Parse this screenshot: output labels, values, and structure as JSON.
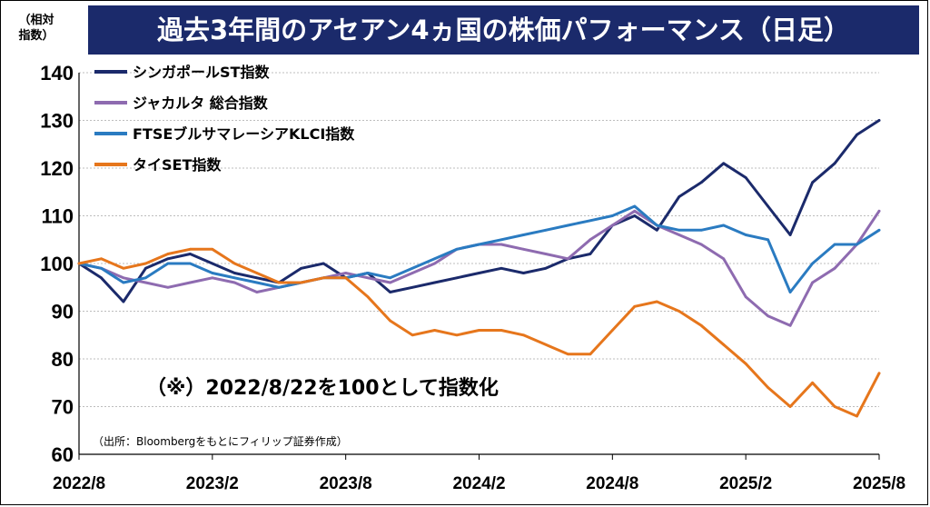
{
  "title": "過去3年間のアセアン4ヵ国の株価パフォーマンス（日足）",
  "unit_label_line1": "（相対",
  "unit_label_line2": "指数）",
  "note": "（※）2022/8/22を100として指数化",
  "source": "（出所：Bloombergをもとにフィリップ証券作成）",
  "chart_data": {
    "type": "line",
    "title": "過去3年間のアセアン4ヵ国の株価パフォーマンス（日足）",
    "ylabel": "（相対指数）",
    "ylim": [
      60,
      140
    ],
    "yticks": [
      60,
      70,
      80,
      90,
      100,
      110,
      120,
      130,
      140
    ],
    "xlim": [
      "2022/8",
      "2025/8"
    ],
    "xticks": [
      "2022/8",
      "2023/2",
      "2023/8",
      "2024/2",
      "2024/8",
      "2025/2",
      "2025/8"
    ],
    "grid": "horizontal dotted",
    "legend_position": "top-left",
    "x": [
      "2022/8",
      "2022/9",
      "2022/10",
      "2022/11",
      "2022/12",
      "2023/1",
      "2023/2",
      "2023/3",
      "2023/4",
      "2023/5",
      "2023/6",
      "2023/7",
      "2023/8",
      "2023/9",
      "2023/10",
      "2023/11",
      "2023/12",
      "2024/1",
      "2024/2",
      "2024/3",
      "2024/4",
      "2024/5",
      "2024/6",
      "2024/7",
      "2024/8",
      "2024/9",
      "2024/10",
      "2024/11",
      "2024/12",
      "2025/1",
      "2025/2",
      "2025/3",
      "2025/4",
      "2025/5",
      "2025/6",
      "2025/7",
      "2025/8"
    ],
    "series": [
      {
        "name": "シンガポールST指数",
        "color": "#1b2a6b",
        "values": [
          100,
          97,
          92,
          99,
          101,
          102,
          100,
          98,
          97,
          96,
          99,
          100,
          97,
          98,
          94,
          95,
          96,
          97,
          98,
          99,
          98,
          99,
          101,
          102,
          108,
          110,
          107,
          114,
          117,
          121,
          118,
          112,
          106,
          117,
          121,
          127,
          130
        ]
      },
      {
        "name": "ジャカルタ 総合指数",
        "color": "#8e6bb0",
        "values": [
          100,
          99,
          97,
          96,
          95,
          96,
          97,
          96,
          94,
          95,
          96,
          97,
          98,
          97,
          96,
          98,
          100,
          103,
          104,
          104,
          103,
          102,
          101,
          105,
          108,
          111,
          108,
          106,
          104,
          101,
          93,
          89,
          87,
          96,
          99,
          104,
          111
        ]
      },
      {
        "name": "FTSEブルサマレーシアKLCI指数",
        "color": "#2a7bc1",
        "values": [
          100,
          99,
          96,
          97,
          100,
          100,
          98,
          97,
          96,
          95,
          96,
          97,
          97,
          98,
          97,
          99,
          101,
          103,
          104,
          105,
          106,
          107,
          108,
          109,
          110,
          112,
          108,
          107,
          107,
          108,
          106,
          105,
          94,
          100,
          104,
          104,
          107
        ]
      },
      {
        "name": "タイSET指数",
        "color": "#e6761c",
        "values": [
          100,
          101,
          99,
          100,
          102,
          103,
          103,
          100,
          98,
          96,
          96,
          97,
          97,
          93,
          88,
          85,
          86,
          85,
          86,
          86,
          85,
          83,
          81,
          81,
          86,
          91,
          92,
          90,
          87,
          83,
          79,
          74,
          70,
          75,
          70,
          68,
          77
        ]
      }
    ]
  }
}
